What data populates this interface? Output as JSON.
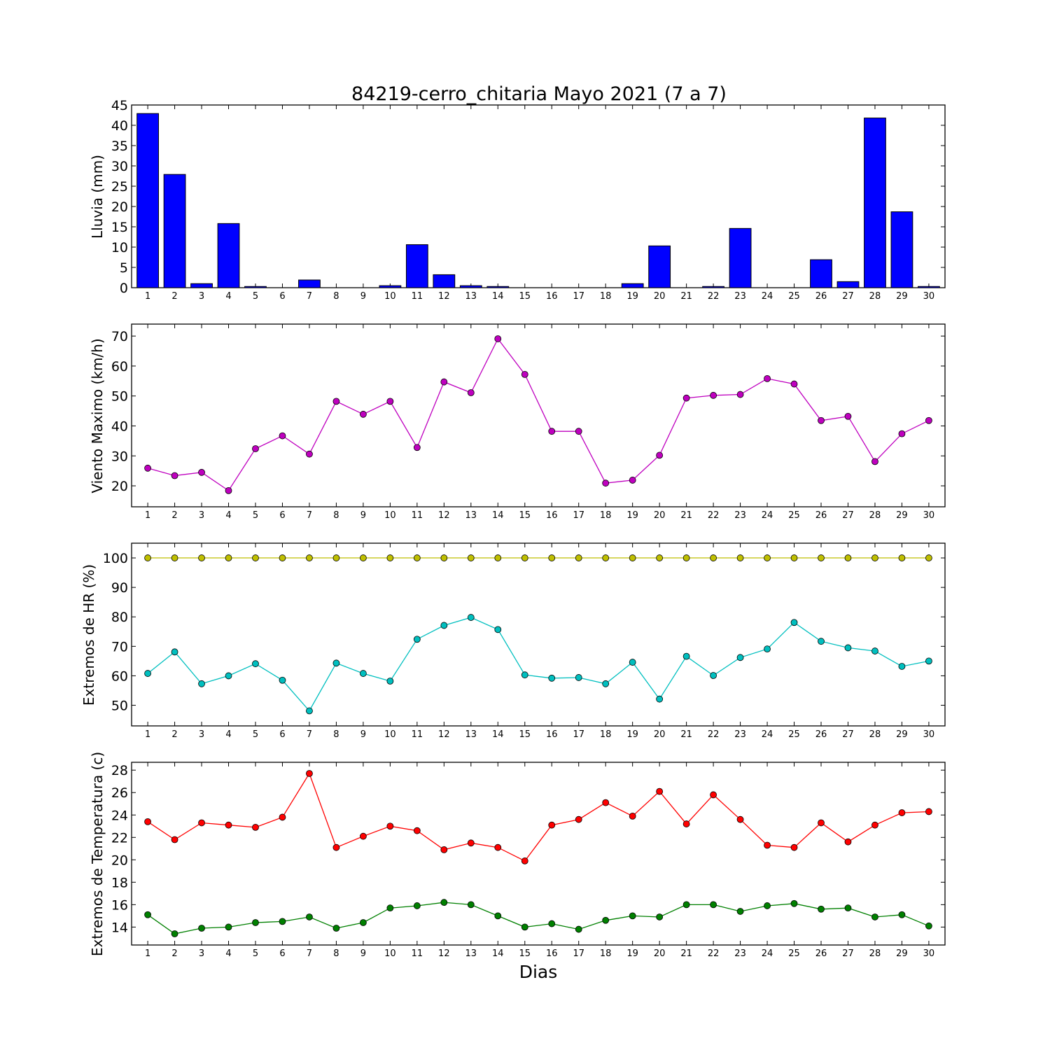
{
  "figure": {
    "title": "84219-cerro_chitaria Mayo 2021  (7 a 7)",
    "xlabel": "Dias"
  },
  "chart_data": [
    {
      "type": "bar",
      "ylabel": "Lluvia (mm)",
      "categories": [
        "1",
        "2",
        "3",
        "4",
        "5",
        "6",
        "7",
        "8",
        "9",
        "10",
        "11",
        "12",
        "13",
        "14",
        "15",
        "16",
        "17",
        "18",
        "19",
        "20",
        "21",
        "22",
        "23",
        "24",
        "25",
        "26",
        "27",
        "28",
        "29",
        "30"
      ],
      "ylim": [
        0,
        45
      ],
      "yticks": [
        0,
        5,
        10,
        15,
        20,
        25,
        30,
        35,
        40,
        45
      ],
      "series": [
        {
          "color": "#0000ff",
          "values": [
            42.9,
            27.9,
            1.0,
            15.8,
            0.3,
            0.0,
            1.9,
            0.0,
            0.0,
            0.5,
            10.6,
            3.2,
            0.5,
            0.3,
            0.0,
            0.0,
            0.0,
            0.0,
            1.0,
            10.3,
            0.0,
            0.3,
            14.6,
            0.0,
            0.0,
            6.9,
            1.5,
            41.8,
            18.7,
            0.3
          ]
        }
      ]
    },
    {
      "type": "line",
      "ylabel": "Viento Maximo (km/h)",
      "categories": [
        "1",
        "2",
        "3",
        "4",
        "5",
        "6",
        "7",
        "8",
        "9",
        "10",
        "11",
        "12",
        "13",
        "14",
        "15",
        "16",
        "17",
        "18",
        "19",
        "20",
        "21",
        "22",
        "23",
        "24",
        "25",
        "26",
        "27",
        "28",
        "29",
        "30"
      ],
      "ylim": [
        13,
        74
      ],
      "yticks": [
        20,
        30,
        40,
        50,
        60,
        70
      ],
      "series": [
        {
          "color": "#bf00bf",
          "values": [
            25.9,
            23.4,
            24.5,
            18.4,
            32.4,
            36.7,
            30.6,
            48.2,
            43.9,
            48.2,
            32.8,
            54.7,
            51.1,
            69.1,
            57.2,
            38.2,
            38.2,
            20.9,
            21.9,
            30.2,
            49.3,
            50.2,
            50.5,
            55.8,
            54.0,
            41.8,
            43.2,
            28.1,
            37.4,
            41.8
          ]
        }
      ]
    },
    {
      "type": "line",
      "ylabel": "Extremos de HR (%)",
      "categories": [
        "1",
        "2",
        "3",
        "4",
        "5",
        "6",
        "7",
        "8",
        "9",
        "10",
        "11",
        "12",
        "13",
        "14",
        "15",
        "16",
        "17",
        "18",
        "19",
        "20",
        "21",
        "22",
        "23",
        "24",
        "25",
        "26",
        "27",
        "28",
        "29",
        "30"
      ],
      "ylim": [
        43,
        105
      ],
      "yticks": [
        50,
        60,
        70,
        80,
        90,
        100
      ],
      "series": [
        {
          "color": "#bfbf00",
          "values": [
            100,
            100,
            100,
            100,
            100,
            100,
            100,
            100,
            100,
            100,
            100,
            100,
            100,
            100,
            100,
            100,
            100,
            100,
            100,
            100,
            100,
            100,
            100,
            100,
            100,
            100,
            100,
            100,
            100,
            100
          ]
        },
        {
          "color": "#00bfbf",
          "values": [
            60.8,
            68.1,
            57.3,
            60.0,
            64.1,
            58.5,
            48.1,
            64.3,
            60.8,
            58.2,
            72.4,
            77.1,
            79.8,
            75.7,
            60.3,
            59.2,
            59.4,
            57.3,
            64.6,
            52.1,
            66.6,
            60.1,
            66.2,
            69.1,
            78.1,
            71.7,
            69.5,
            68.4,
            63.2,
            65.0
          ]
        }
      ]
    },
    {
      "type": "line",
      "ylabel": "Extremos de Temperatura (c)",
      "categories": [
        "1",
        "2",
        "3",
        "4",
        "5",
        "6",
        "7",
        "8",
        "9",
        "10",
        "11",
        "12",
        "13",
        "14",
        "15",
        "16",
        "17",
        "18",
        "19",
        "20",
        "21",
        "22",
        "23",
        "24",
        "25",
        "26",
        "27",
        "28",
        "29",
        "30"
      ],
      "ylim": [
        12.4,
        28.7
      ],
      "yticks": [
        14,
        16,
        18,
        20,
        22,
        24,
        26,
        28
      ],
      "series": [
        {
          "color": "#ff0000",
          "values": [
            23.4,
            21.8,
            23.3,
            23.1,
            22.9,
            23.8,
            27.7,
            21.1,
            22.1,
            23.0,
            22.6,
            20.9,
            21.5,
            21.1,
            19.9,
            23.1,
            23.6,
            25.1,
            23.9,
            26.1,
            23.2,
            25.8,
            23.6,
            21.3,
            21.1,
            23.3,
            21.6,
            23.1,
            24.2,
            24.3
          ]
        },
        {
          "color": "#008000",
          "values": [
            15.1,
            13.4,
            13.9,
            14.0,
            14.4,
            14.5,
            14.9,
            13.9,
            14.4,
            15.7,
            15.9,
            16.2,
            16.0,
            15.0,
            14.0,
            14.3,
            13.8,
            14.6,
            15.0,
            14.9,
            16.0,
            16.0,
            15.4,
            15.9,
            16.1,
            15.6,
            15.7,
            14.9,
            15.1,
            14.1
          ]
        }
      ]
    }
  ]
}
